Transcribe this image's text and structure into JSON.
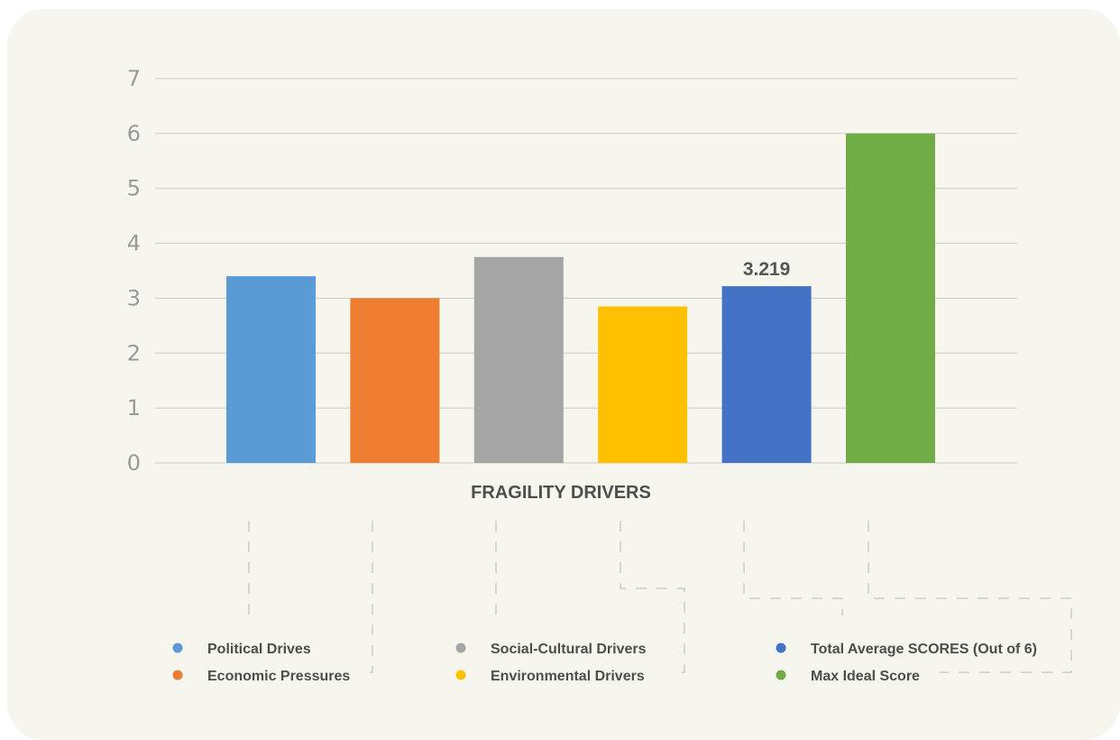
{
  "chart_data": {
    "type": "bar",
    "title": "",
    "xlabel": "FRAGILITY DRIVERS",
    "ylabel": "",
    "ylim": [
      0,
      7
    ],
    "yticks": [
      0,
      1,
      2,
      3,
      4,
      5,
      6,
      7
    ],
    "grid": true,
    "legend_position": "bottom",
    "series": [
      {
        "name": "Political Drives",
        "value": 3.4,
        "color": "#5b9bd5"
      },
      {
        "name": "Economic Pressures",
        "value": 3.0,
        "color": "#ed7d31"
      },
      {
        "name": "Social-Cultural Drivers",
        "value": 3.75,
        "color": "#a5a5a5"
      },
      {
        "name": "Environmental Drivers",
        "value": 2.85,
        "color": "#ffc000"
      },
      {
        "name": "Total Average SCORES (Out of 6)",
        "value": 3.219,
        "color": "#4472c4",
        "data_label": "3.219"
      },
      {
        "name": "Max Ideal Score",
        "value": 6,
        "color": "#70ad47"
      }
    ]
  }
}
